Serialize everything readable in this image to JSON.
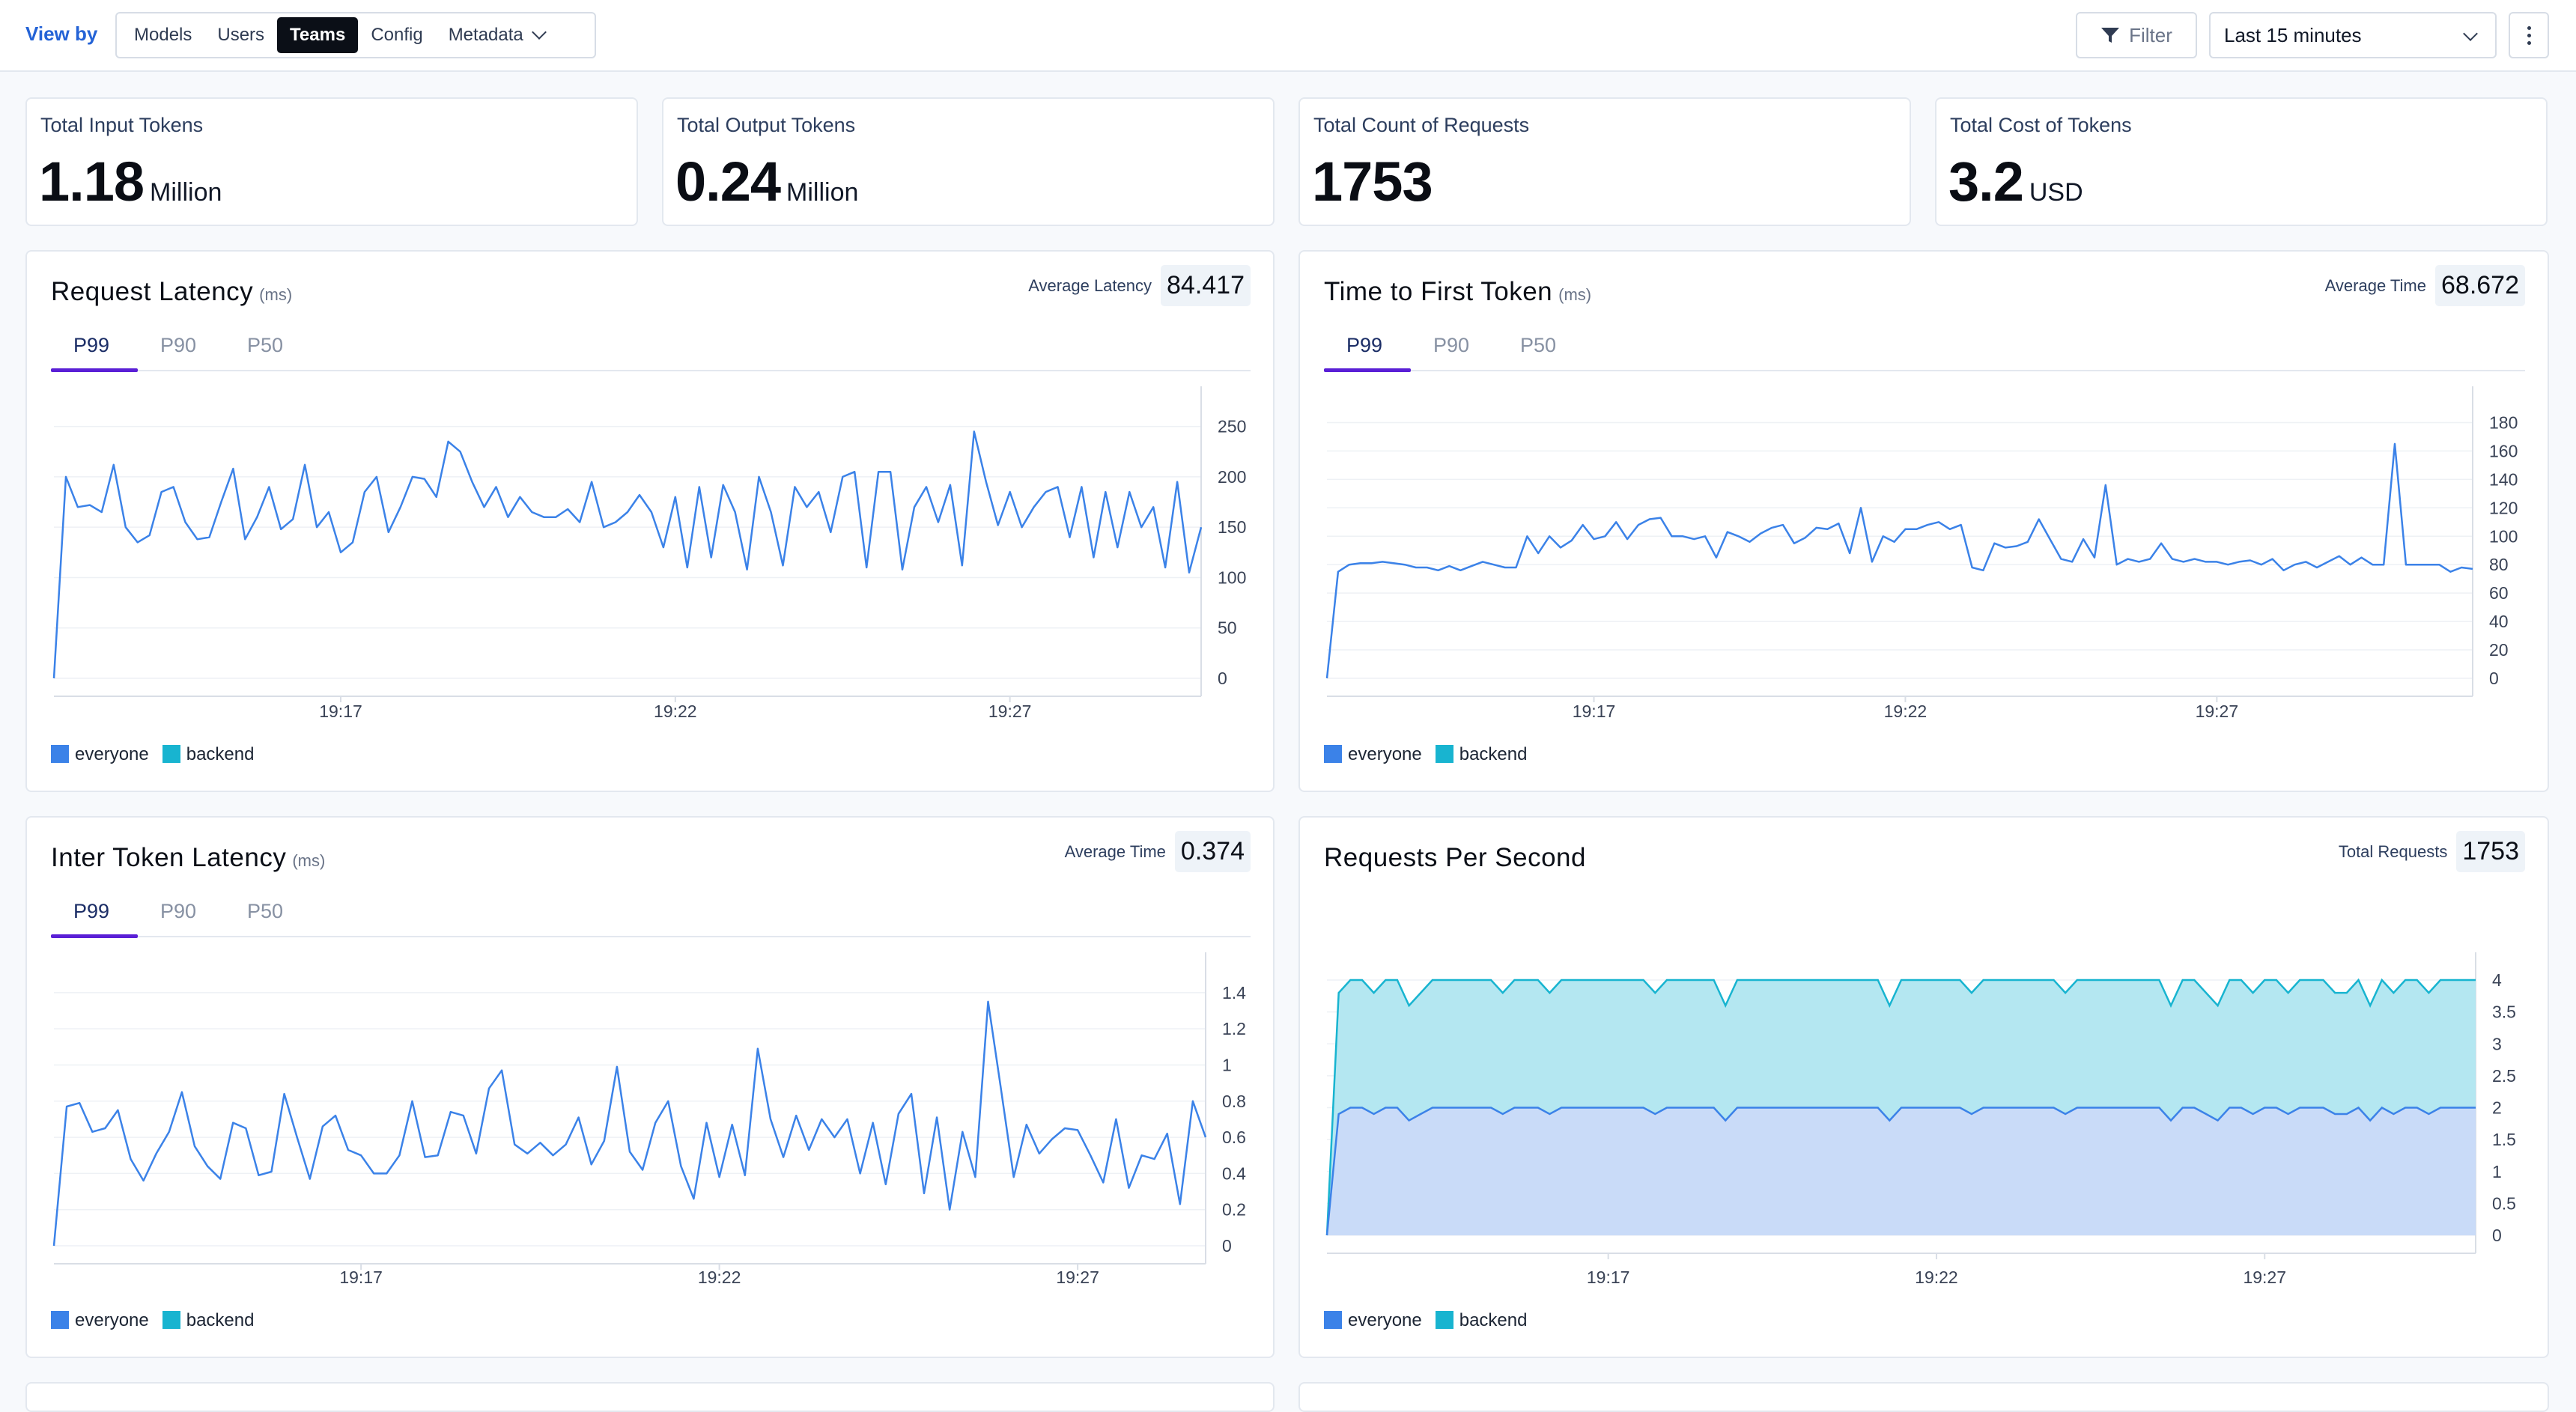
{
  "toolbar": {
    "view_by": "View by",
    "options": [
      "Models",
      "Users",
      "Teams",
      "Config",
      "Metadata"
    ],
    "active_option": "Teams",
    "filter_label": "Filter",
    "time_range": "Last 15 minutes"
  },
  "stats": [
    {
      "label": "Total Input Tokens",
      "value": "1.18",
      "unit": "Million"
    },
    {
      "label": "Total Output Tokens",
      "value": "0.24",
      "unit": "Million"
    },
    {
      "label": "Total Count of Requests",
      "value": "1753",
      "unit": ""
    },
    {
      "label": "Total Cost of Tokens",
      "value": "3.2",
      "unit": "USD"
    }
  ],
  "legend": {
    "everyone": "everyone",
    "backend": "backend"
  },
  "colors": {
    "everyone": "#3b82e8",
    "backend": "#18b4d0",
    "tab_accent": "#5a1fd6"
  },
  "cards": {
    "request_latency": {
      "title": "Request Latency",
      "unit": "(ms)",
      "metric_label": "Average Latency",
      "metric_value": "84.417",
      "tabs": [
        "P99",
        "P90",
        "P50"
      ],
      "active_tab": "P99"
    },
    "ttft": {
      "title": "Time to First Token",
      "unit": "(ms)",
      "metric_label": "Average Time",
      "metric_value": "68.672",
      "tabs": [
        "P99",
        "P90",
        "P50"
      ],
      "active_tab": "P99"
    },
    "inter_token": {
      "title": "Inter Token Latency",
      "unit": "(ms)",
      "metric_label": "Average Time",
      "metric_value": "0.374",
      "tabs": [
        "P99",
        "P90",
        "P50"
      ],
      "active_tab": "P99"
    },
    "rps": {
      "title": "Requests Per Second",
      "metric_label": "Total Requests",
      "metric_value": "1753"
    }
  },
  "chart_data": [
    {
      "id": "request_latency",
      "type": "line",
      "title": "Request Latency (ms) P99",
      "x_ticks": [
        "19:17",
        "19:22",
        "19:27"
      ],
      "x_tick_index": [
        24,
        52,
        80
      ],
      "y_ticks": [
        0,
        50,
        100,
        150,
        200,
        250
      ],
      "ylim": [
        0,
        275
      ],
      "series": [
        {
          "name": "everyone",
          "values": [
            0,
            200,
            170,
            172,
            165,
            212,
            150,
            135,
            142,
            185,
            190,
            155,
            138,
            140,
            175,
            208,
            138,
            160,
            190,
            148,
            158,
            212,
            150,
            165,
            125,
            135,
            185,
            200,
            145,
            170,
            200,
            198,
            180,
            235,
            225,
            195,
            170,
            190,
            160,
            180,
            165,
            160,
            160,
            168,
            155,
            195,
            150,
            155,
            165,
            182,
            165,
            130,
            180,
            110,
            190,
            120,
            192,
            165,
            108,
            200,
            165,
            112,
            190,
            170,
            185,
            145,
            200,
            205,
            110,
            205,
            205,
            108,
            170,
            190,
            155,
            192,
            112,
            245,
            195,
            152,
            185,
            150,
            170,
            185,
            190,
            140,
            190,
            120,
            185,
            130,
            185,
            150,
            170,
            110,
            195,
            105,
            150
          ]
        }
      ]
    },
    {
      "id": "ttft",
      "type": "line",
      "title": "Time to First Token (ms) P99",
      "x_ticks": [
        "19:17",
        "19:22",
        "19:27"
      ],
      "x_tick_index": [
        24,
        52,
        80
      ],
      "y_ticks": [
        0,
        20,
        40,
        60,
        80,
        100,
        120,
        140,
        160,
        180
      ],
      "ylim": [
        0,
        195
      ],
      "series": [
        {
          "name": "everyone",
          "values": [
            0,
            75,
            80,
            81,
            81,
            82,
            81,
            80,
            78,
            78,
            76,
            79,
            76,
            79,
            82,
            80,
            78,
            78,
            100,
            88,
            100,
            92,
            97,
            108,
            98,
            100,
            110,
            98,
            108,
            112,
            113,
            100,
            100,
            98,
            100,
            85,
            103,
            100,
            96,
            102,
            106,
            108,
            95,
            99,
            106,
            105,
            109,
            88,
            120,
            82,
            100,
            96,
            105,
            105,
            108,
            110,
            105,
            108,
            78,
            76,
            95,
            92,
            93,
            96,
            112,
            98,
            84,
            82,
            98,
            85,
            136,
            80,
            84,
            82,
            84,
            95,
            84,
            82,
            84,
            82,
            82,
            80,
            82,
            83,
            80,
            84,
            76,
            80,
            82,
            78,
            82,
            86,
            80,
            85,
            80,
            80,
            165,
            80,
            80,
            80,
            80,
            75,
            78,
            77
          ]
        }
      ]
    },
    {
      "id": "inter_token",
      "type": "line",
      "title": "Inter Token Latency (ms) P99",
      "x_ticks": [
        "19:17",
        "19:22",
        "19:27"
      ],
      "x_tick_index": [
        24,
        52,
        80
      ],
      "y_ticks": [
        0,
        0.2,
        0.4,
        0.6,
        0.8,
        1,
        1.2,
        1.4
      ],
      "ylim": [
        0,
        1.54
      ],
      "series": [
        {
          "name": "everyone",
          "values": [
            0,
            0.77,
            0.79,
            0.63,
            0.65,
            0.75,
            0.48,
            0.36,
            0.51,
            0.63,
            0.85,
            0.55,
            0.44,
            0.37,
            0.68,
            0.65,
            0.39,
            0.41,
            0.84,
            0.6,
            0.37,
            0.66,
            0.72,
            0.53,
            0.5,
            0.4,
            0.4,
            0.5,
            0.8,
            0.49,
            0.5,
            0.74,
            0.72,
            0.51,
            0.87,
            0.97,
            0.56,
            0.51,
            0.57,
            0.5,
            0.56,
            0.71,
            0.45,
            0.58,
            0.99,
            0.52,
            0.42,
            0.68,
            0.8,
            0.44,
            0.26,
            0.68,
            0.38,
            0.67,
            0.39,
            1.09,
            0.7,
            0.49,
            0.72,
            0.53,
            0.7,
            0.6,
            0.7,
            0.4,
            0.68,
            0.34,
            0.73,
            0.84,
            0.29,
            0.71,
            0.2,
            0.63,
            0.38,
            1.35,
            0.87,
            0.38,
            0.67,
            0.51,
            0.59,
            0.65,
            0.64,
            0.5,
            0.35,
            0.7,
            0.32,
            0.5,
            0.48,
            0.62,
            0.23,
            0.8,
            0.6
          ]
        }
      ]
    },
    {
      "id": "rps",
      "type": "area",
      "title": "Requests Per Second",
      "stacked": true,
      "x_ticks": [
        "19:17",
        "19:22",
        "19:27"
      ],
      "x_tick_index": [
        24,
        52,
        80
      ],
      "y_ticks": [
        0,
        0.5,
        1,
        1.5,
        2,
        2.5,
        3,
        3.5,
        4
      ],
      "ylim": [
        0,
        4.2
      ],
      "series": [
        {
          "name": "everyone",
          "values": [
            0,
            1.9,
            2,
            2,
            1.9,
            2,
            2,
            1.8,
            1.9,
            2,
            2,
            2,
            2,
            2,
            2,
            1.9,
            2,
            2,
            2,
            1.9,
            2,
            2,
            2,
            2,
            2,
            2,
            2,
            2,
            1.9,
            2,
            2,
            2,
            2,
            2,
            1.8,
            2,
            2,
            2,
            2,
            2,
            2,
            2,
            2,
            2,
            2,
            2,
            2,
            2,
            1.8,
            2,
            2,
            2,
            2,
            2,
            2,
            1.9,
            2,
            2,
            2,
            2,
            2,
            2,
            2,
            1.9,
            2,
            2,
            2,
            2,
            2,
            2,
            2,
            2,
            1.8,
            2,
            2,
            1.9,
            1.8,
            2,
            2,
            1.9,
            2,
            2,
            1.9,
            2,
            2,
            2,
            1.9,
            1.9,
            2,
            1.8,
            2,
            1.9,
            2,
            2,
            1.9,
            2,
            2,
            2,
            2
          ]
        },
        {
          "name": "backend",
          "values": [
            0,
            1.9,
            2,
            2,
            1.9,
            2,
            2,
            1.8,
            1.9,
            2,
            2,
            2,
            2,
            2,
            2,
            1.9,
            2,
            2,
            2,
            1.9,
            2,
            2,
            2,
            2,
            2,
            2,
            2,
            2,
            1.9,
            2,
            2,
            2,
            2,
            2,
            1.8,
            2,
            2,
            2,
            2,
            2,
            2,
            2,
            2,
            2,
            2,
            2,
            2,
            2,
            1.8,
            2,
            2,
            2,
            2,
            2,
            2,
            1.9,
            2,
            2,
            2,
            2,
            2,
            2,
            2,
            1.9,
            2,
            2,
            2,
            2,
            2,
            2,
            2,
            2,
            1.8,
            2,
            2,
            1.9,
            1.8,
            2,
            2,
            1.9,
            2,
            2,
            1.9,
            2,
            2,
            2,
            1.9,
            1.9,
            2,
            1.8,
            2,
            1.9,
            2,
            2,
            1.9,
            2,
            2,
            2,
            2
          ]
        }
      ]
    }
  ]
}
